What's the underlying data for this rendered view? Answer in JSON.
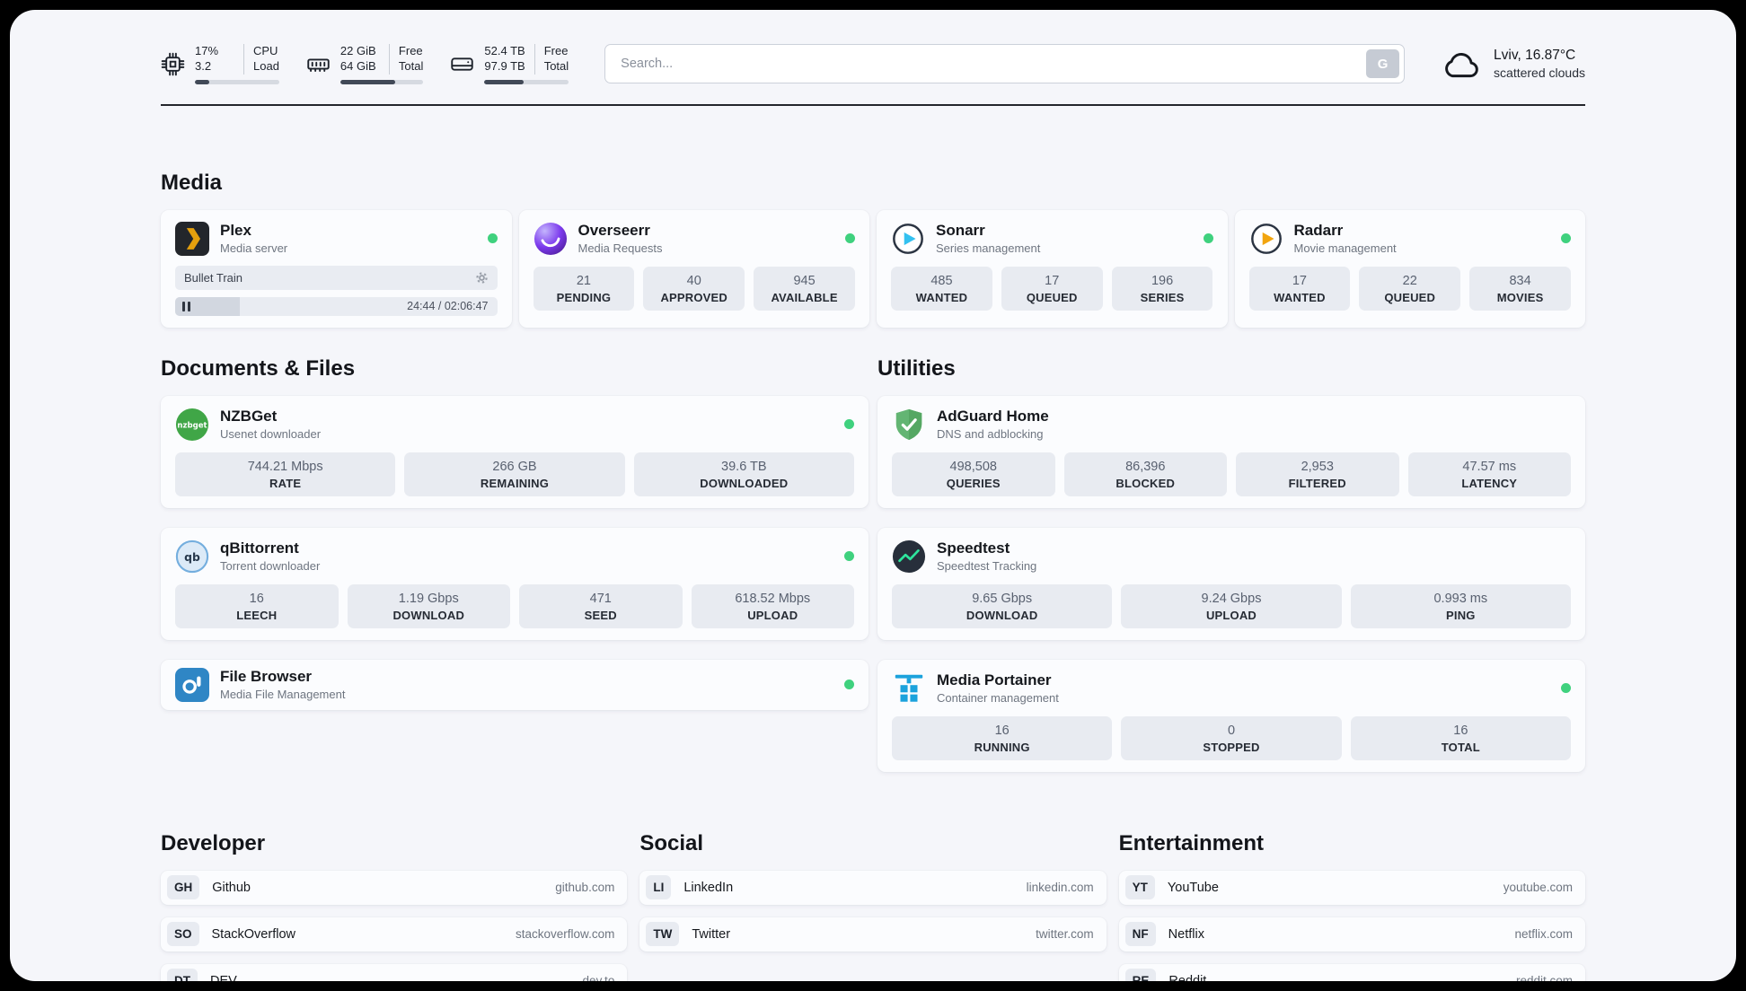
{
  "topbar": {
    "cpu": {
      "line1": "17%",
      "line2": "3.2",
      "label1": "CPU",
      "label2": "Load",
      "progress": 17
    },
    "memory": {
      "line1": "22 GiB",
      "line2": "64 GiB",
      "label1": "Free",
      "label2": "Total",
      "progress": 66
    },
    "disk": {
      "line1": "52.4 TB",
      "line2": "97.9 TB",
      "label1": "Free",
      "label2": "Total",
      "progress": 46
    },
    "search": {
      "placeholder": "Search...",
      "button_label": "G"
    },
    "weather": {
      "location": "Lviv, 16.87°C",
      "condition": "scattered clouds"
    }
  },
  "icons": [
    "cpu-chip-icon",
    "ram-icon",
    "hdd-icon",
    "cloud-icon",
    "plex-icon",
    "overseerr-icon",
    "sonarr-icon",
    "radarr-icon",
    "nzbget-icon",
    "qbittorrent-icon",
    "filebrowser-icon",
    "adguard-shield-icon",
    "speedtest-icon",
    "portainer-crane-icon",
    "gear-icon",
    "pause-icon"
  ],
  "sections": {
    "media": {
      "title": "Media",
      "plex": {
        "name": "Plex",
        "desc": "Media server",
        "now_playing": "Bullet Train",
        "time": "24:44 / 02:06:47",
        "progress": 20
      },
      "overseerr": {
        "name": "Overseerr",
        "desc": "Media Requests",
        "stats": [
          {
            "value": "21",
            "label": "PENDING"
          },
          {
            "value": "40",
            "label": "APPROVED"
          },
          {
            "value": "945",
            "label": "AVAILABLE"
          }
        ]
      },
      "sonarr": {
        "name": "Sonarr",
        "desc": "Series management",
        "stats": [
          {
            "value": "485",
            "label": "WANTED"
          },
          {
            "value": "17",
            "label": "QUEUED"
          },
          {
            "value": "196",
            "label": "SERIES"
          }
        ]
      },
      "radarr": {
        "name": "Radarr",
        "desc": "Movie management",
        "stats": [
          {
            "value": "17",
            "label": "WANTED"
          },
          {
            "value": "22",
            "label": "QUEUED"
          },
          {
            "value": "834",
            "label": "MOVIES"
          }
        ]
      }
    },
    "documents": {
      "title": "Documents & Files",
      "nzbget": {
        "name": "NZBGet",
        "desc": "Usenet downloader",
        "stats": [
          {
            "value": "744.21 Mbps",
            "label": "RATE"
          },
          {
            "value": "266 GB",
            "label": "REMAINING"
          },
          {
            "value": "39.6 TB",
            "label": "DOWNLOADED"
          }
        ]
      },
      "qbittorrent": {
        "name": "qBittorrent",
        "desc": "Torrent downloader",
        "stats": [
          {
            "value": "16",
            "label": "LEECH"
          },
          {
            "value": "1.19 Gbps",
            "label": "DOWNLOAD"
          },
          {
            "value": "471",
            "label": "SEED"
          },
          {
            "value": "618.52 Mbps",
            "label": "UPLOAD"
          }
        ]
      },
      "filebrowser": {
        "name": "File Browser",
        "desc": "Media File Management"
      }
    },
    "utilities": {
      "title": "Utilities",
      "adguard": {
        "name": "AdGuard Home",
        "desc": "DNS and adblocking",
        "stats": [
          {
            "value": "498,508",
            "label": "QUERIES"
          },
          {
            "value": "86,396",
            "label": "BLOCKED"
          },
          {
            "value": "2,953",
            "label": "FILTERED"
          },
          {
            "value": "47.57 ms",
            "label": "LATENCY"
          }
        ]
      },
      "speedtest": {
        "name": "Speedtest",
        "desc": "Speedtest Tracking",
        "stats": [
          {
            "value": "9.65 Gbps",
            "label": "DOWNLOAD"
          },
          {
            "value": "9.24 Gbps",
            "label": "UPLOAD"
          },
          {
            "value": "0.993 ms",
            "label": "PING"
          }
        ]
      },
      "portainer": {
        "name": "Media Portainer",
        "desc": "Container management",
        "stats": [
          {
            "value": "16",
            "label": "RUNNING"
          },
          {
            "value": "0",
            "label": "STOPPED"
          },
          {
            "value": "16",
            "label": "TOTAL"
          }
        ]
      }
    },
    "developer": {
      "title": "Developer",
      "links": [
        {
          "abbr": "GH",
          "name": "Github",
          "domain": "github.com"
        },
        {
          "abbr": "SO",
          "name": "StackOverflow",
          "domain": "stackoverflow.com"
        },
        {
          "abbr": "DT",
          "name": "DEV",
          "domain": "dev.to"
        }
      ]
    },
    "social": {
      "title": "Social",
      "links": [
        {
          "abbr": "LI",
          "name": "LinkedIn",
          "domain": "linkedin.com"
        },
        {
          "abbr": "TW",
          "name": "Twitter",
          "domain": "twitter.com"
        }
      ]
    },
    "entertainment": {
      "title": "Entertainment",
      "links": [
        {
          "abbr": "YT",
          "name": "YouTube",
          "domain": "youtube.com"
        },
        {
          "abbr": "NF",
          "name": "Netflix",
          "domain": "netflix.com"
        },
        {
          "abbr": "RE",
          "name": "Reddit",
          "domain": "reddit.com"
        }
      ]
    }
  },
  "colors": {
    "status_online": "#3fd17e",
    "plex_accent": "#e5a00d",
    "sonarr_accent": "#33c1f0",
    "radarr_accent": "#f2a50f",
    "adguard_green": "#63b573",
    "speedtest_green": "#2ee59d",
    "portainer_blue": "#1ba2dc"
  }
}
